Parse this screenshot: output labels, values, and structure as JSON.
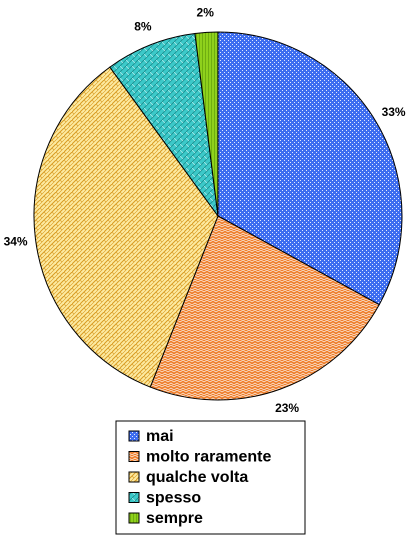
{
  "chart_data": {
    "type": "pie",
    "categories": [
      "mai",
      "molto raramente",
      "qualche volta",
      "spesso",
      "sempre"
    ],
    "values": [
      33,
      23,
      34,
      8,
      2
    ],
    "value_labels": [
      "33%",
      "23%",
      "34%",
      "8%",
      "2%"
    ],
    "start": "12 o'clock",
    "direction": "clockwise",
    "legend_position": "bottom",
    "colors": [
      "#3d6df0",
      "#ee7d2a",
      "#fdeaa0",
      "#3cc9c9",
      "#8fd11c"
    ]
  }
}
